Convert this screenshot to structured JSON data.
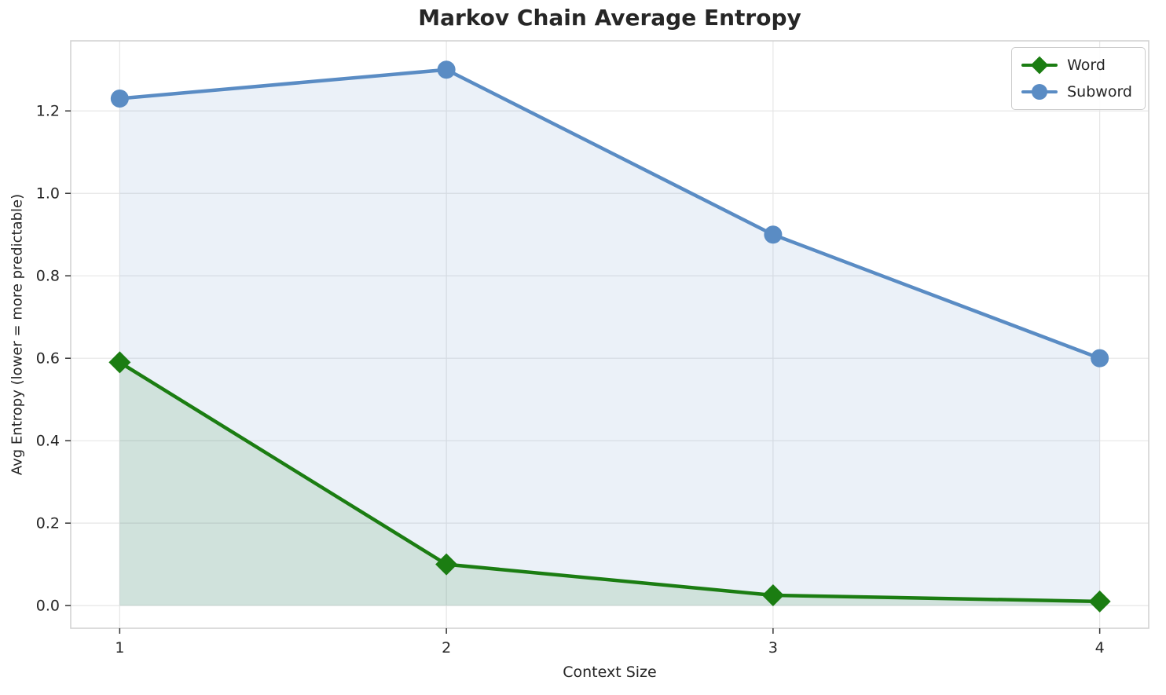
{
  "chart_data": {
    "type": "line",
    "title": "Markov Chain Average Entropy",
    "xlabel": "Context Size",
    "ylabel": "Avg Entropy (lower = more predictable)",
    "x": [
      1,
      2,
      3,
      4
    ],
    "series": [
      {
        "name": "Word",
        "values": [
          0.59,
          0.1,
          0.025,
          0.01
        ],
        "color": "#1b7d12",
        "fill": "rgba(27, 125, 18, 0.13)",
        "marker": "diamond"
      },
      {
        "name": "Subword",
        "values": [
          1.23,
          1.3,
          0.9,
          0.6
        ],
        "color": "#5a8cc4",
        "fill": "rgba(90, 140, 196, 0.12)",
        "marker": "circle"
      }
    ],
    "xticks": [
      1,
      2,
      3,
      4
    ],
    "yticks": [
      0.0,
      0.2,
      0.4,
      0.6,
      0.8,
      1.0,
      1.2
    ],
    "xlim": [
      0.85,
      4.15
    ],
    "ylim": [
      -0.055,
      1.37
    ],
    "grid": true,
    "legend_position": "upper right",
    "colors": {
      "grid": "#e6e6e6",
      "axis_border": "#d0d0d0",
      "tick_text": "#262626"
    }
  }
}
